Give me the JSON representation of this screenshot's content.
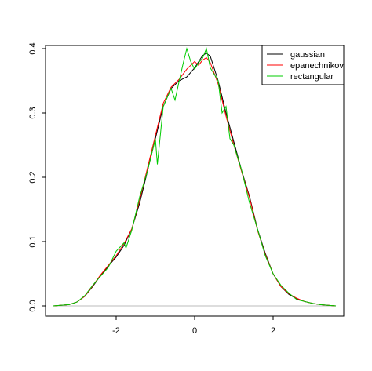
{
  "chart_data": {
    "type": "line",
    "title": "",
    "xlabel": "",
    "ylabel": "",
    "xlim": [
      -3.8,
      3.8
    ],
    "ylim": [
      0,
      0.4
    ],
    "x_ticks": [
      -2,
      0,
      2
    ],
    "x_tick_labels": [
      "-2",
      "0",
      "2"
    ],
    "y_ticks": [
      0.0,
      0.1,
      0.2,
      0.3,
      0.4
    ],
    "y_tick_labels": [
      "0.0",
      "0.1",
      "0.2",
      "0.3",
      "0.4"
    ],
    "grid": false,
    "legend_position": "top-right",
    "baseline": {
      "y": 0,
      "color": "#bbbbbb"
    },
    "series": [
      {
        "name": "gaussian",
        "color": "#000000",
        "x": [
          -3.6,
          -3.2,
          -3.0,
          -2.8,
          -2.6,
          -2.4,
          -2.2,
          -2.0,
          -1.8,
          -1.6,
          -1.4,
          -1.2,
          -1.0,
          -0.8,
          -0.6,
          -0.4,
          -0.2,
          0.0,
          0.2,
          0.3,
          0.4,
          0.6,
          0.8,
          1.0,
          1.2,
          1.4,
          1.6,
          1.8,
          2.0,
          2.2,
          2.4,
          2.6,
          2.8,
          3.0,
          3.2,
          3.4,
          3.6
        ],
        "y": [
          0.0,
          0.002,
          0.006,
          0.015,
          0.03,
          0.047,
          0.062,
          0.076,
          0.094,
          0.12,
          0.16,
          0.21,
          0.26,
          0.31,
          0.338,
          0.35,
          0.356,
          0.37,
          0.389,
          0.393,
          0.388,
          0.35,
          0.3,
          0.255,
          0.21,
          0.17,
          0.12,
          0.082,
          0.05,
          0.03,
          0.018,
          0.011,
          0.007,
          0.004,
          0.002,
          0.001,
          0.0
        ]
      },
      {
        "name": "epanechnikov",
        "color": "#ff0000",
        "x": [
          -3.6,
          -3.2,
          -3.0,
          -2.8,
          -2.6,
          -2.4,
          -2.2,
          -2.0,
          -1.8,
          -1.6,
          -1.4,
          -1.2,
          -1.0,
          -0.8,
          -0.6,
          -0.4,
          -0.2,
          0.0,
          0.1,
          0.2,
          0.3,
          0.4,
          0.6,
          0.8,
          1.0,
          1.2,
          1.4,
          1.6,
          1.8,
          2.0,
          2.2,
          2.4,
          2.6,
          2.8,
          3.0,
          3.2,
          3.4,
          3.6
        ],
        "y": [
          0.0,
          0.002,
          0.006,
          0.015,
          0.031,
          0.048,
          0.063,
          0.078,
          0.097,
          0.12,
          0.165,
          0.215,
          0.265,
          0.315,
          0.34,
          0.352,
          0.368,
          0.38,
          0.374,
          0.382,
          0.386,
          0.378,
          0.345,
          0.295,
          0.25,
          0.208,
          0.168,
          0.118,
          0.08,
          0.05,
          0.03,
          0.019,
          0.012,
          0.007,
          0.004,
          0.002,
          0.001,
          0.0
        ]
      },
      {
        "name": "rectangular",
        "color": "#00cc00",
        "x": [
          -3.6,
          -3.2,
          -3.0,
          -2.8,
          -2.6,
          -2.4,
          -2.2,
          -2.0,
          -1.8,
          -1.75,
          -1.6,
          -1.4,
          -1.2,
          -1.0,
          -0.95,
          -0.8,
          -0.6,
          -0.5,
          -0.4,
          -0.3,
          -0.2,
          -0.1,
          0.0,
          0.1,
          0.2,
          0.3,
          0.4,
          0.5,
          0.6,
          0.7,
          0.8,
          0.9,
          1.0,
          1.2,
          1.4,
          1.6,
          1.8,
          2.0,
          2.2,
          2.4,
          2.6,
          2.8,
          3.0,
          3.2,
          3.4,
          3.6
        ],
        "y": [
          0.0,
          0.002,
          0.006,
          0.016,
          0.032,
          0.046,
          0.06,
          0.085,
          0.098,
          0.09,
          0.118,
          0.17,
          0.21,
          0.26,
          0.22,
          0.31,
          0.338,
          0.32,
          0.348,
          0.375,
          0.4,
          0.38,
          0.368,
          0.378,
          0.385,
          0.4,
          0.37,
          0.36,
          0.35,
          0.3,
          0.31,
          0.26,
          0.25,
          0.21,
          0.16,
          0.12,
          0.078,
          0.05,
          0.032,
          0.02,
          0.01,
          0.007,
          0.004,
          0.002,
          0.001,
          0.0
        ]
      }
    ]
  }
}
